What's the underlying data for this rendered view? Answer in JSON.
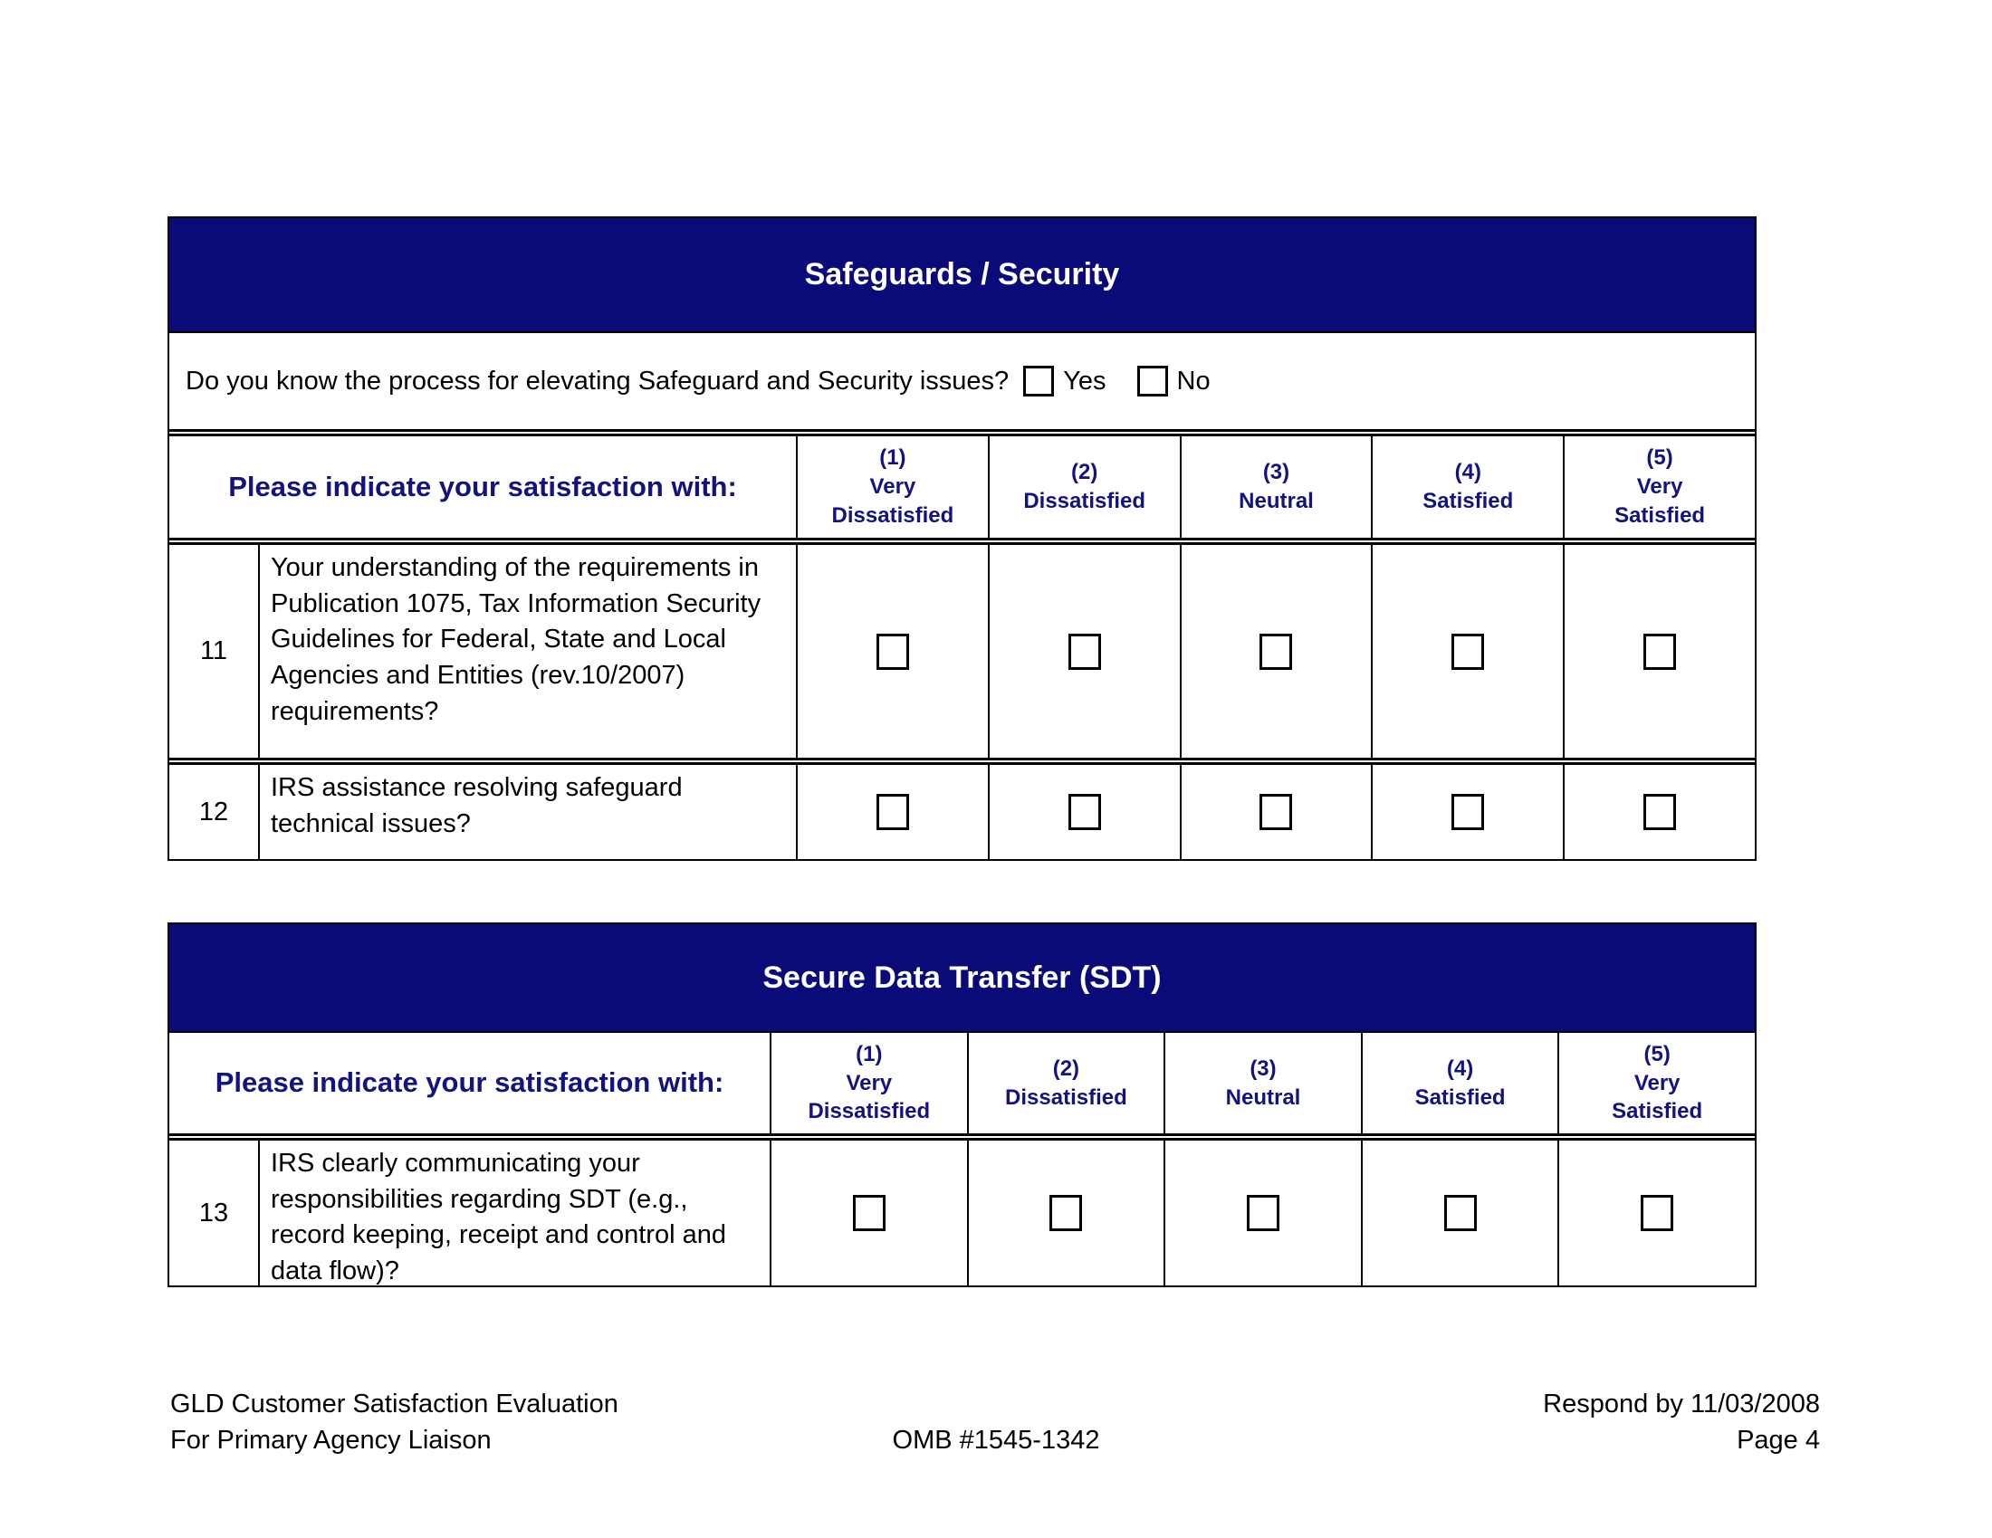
{
  "colors": {
    "banner_bg": "#0a0a78",
    "header_text": "#131380",
    "body_text": "#000000"
  },
  "rating_scale": [
    "(1)\nVery\nDissatisfied",
    "(2)\nDissatisfied",
    "(3)\nNeutral",
    "(4)\nSatisfied",
    "(5)\nVery\nSatisfied"
  ],
  "section1": {
    "title": "Safeguards / Security",
    "question": "Do you know the process for elevating Safeguard and Security issues?",
    "yes_label": "Yes",
    "no_label": "No",
    "table_header": "Please indicate your satisfaction with:",
    "rows": [
      {
        "num": "11",
        "text": "Your understanding of the requirements in Publication 1075, Tax Information Security Guidelines for Federal, State and Local Agencies and Entities (rev.10/2007) requirements?"
      },
      {
        "num": "12",
        "text": "IRS assistance resolving safeguard technical issues?"
      }
    ]
  },
  "section2": {
    "title": "Secure Data Transfer (SDT)",
    "table_header": "Please indicate your satisfaction with:",
    "rows": [
      {
        "num": "13",
        "text": "IRS clearly communicating your responsibilities regarding SDT (e.g., record keeping, receipt and control and data flow)?"
      }
    ]
  },
  "footer": {
    "left_line1": "GLD Customer Satisfaction Evaluation",
    "left_line2": "For Primary Agency Liaison",
    "omb": "OMB #1545-1342",
    "respond_by": "Respond by 11/03/2008",
    "page_label": "Page 4"
  }
}
